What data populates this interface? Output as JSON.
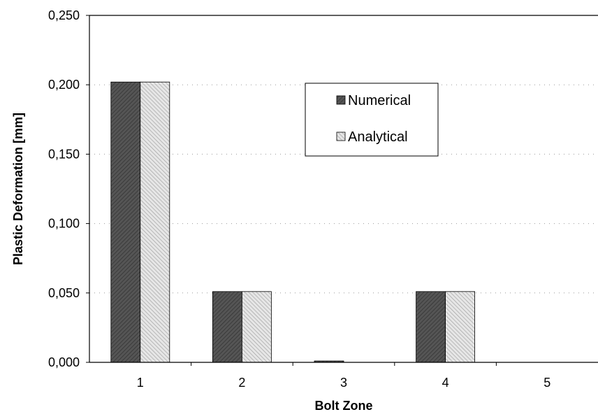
{
  "chart_data": {
    "type": "bar",
    "title": "",
    "xlabel": "Bolt Zone",
    "ylabel": "Plastic Deformation [mm]",
    "categories": [
      "1",
      "2",
      "3",
      "4",
      "5"
    ],
    "series": [
      {
        "name": "Numerical",
        "values": [
          0.202,
          0.051,
          0.001,
          0.051,
          0.0
        ],
        "color": "#555555"
      },
      {
        "name": "Analytical",
        "values": [
          0.202,
          0.051,
          0.0,
          0.051,
          0.0
        ],
        "color": "#cfcfcf"
      }
    ],
    "ylim": [
      0.0,
      0.25
    ],
    "yticks": [
      0.0,
      0.05,
      0.1,
      0.15,
      0.2,
      0.25
    ],
    "ytick_labels": [
      "0,000",
      "0,050",
      "0,100",
      "0,150",
      "0,200",
      "0,250"
    ],
    "grid": "dotted horizontal",
    "legend_position": "top-center"
  }
}
